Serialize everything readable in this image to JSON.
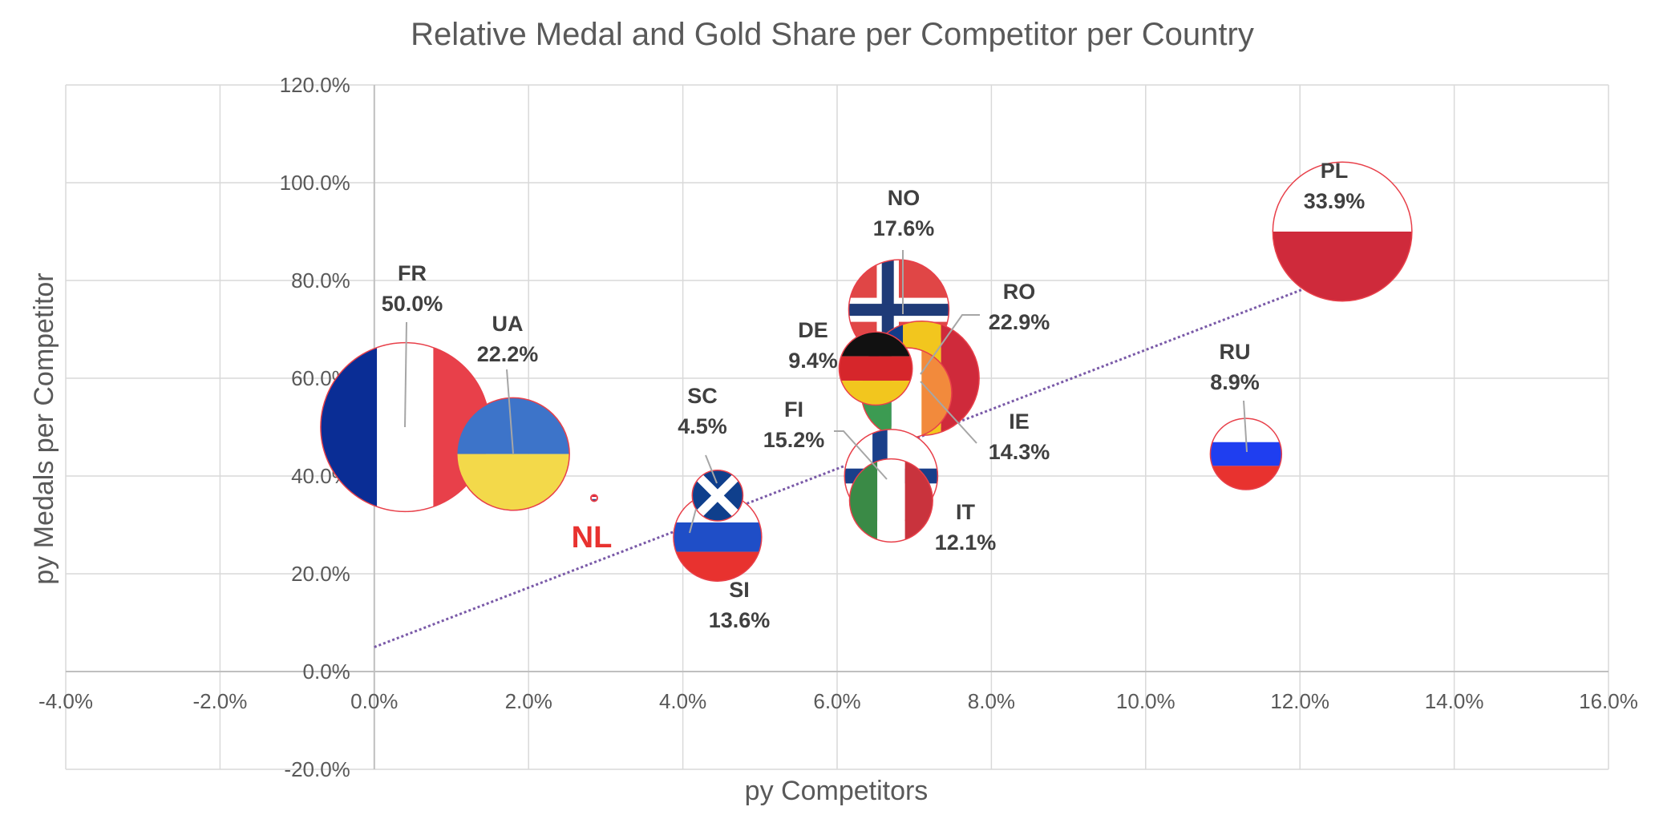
{
  "chart_data": {
    "type": "bubble",
    "title": "Relative Medal and Gold Share per Competitor per Country",
    "xlabel": "py Competitors",
    "ylabel": "py Medals per Competitor",
    "xlim": [
      -4.0,
      16.0
    ],
    "ylim": [
      -20.0,
      120.0
    ],
    "x_ticks": [
      "-4.0%",
      "-2.0%",
      "0.0%",
      "2.0%",
      "4.0%",
      "6.0%",
      "8.0%",
      "10.0%",
      "12.0%",
      "14.0%",
      "16.0%"
    ],
    "y_ticks": [
      "-20.0%",
      "0.0%",
      "20.0%",
      "40.0%",
      "60.0%",
      "80.0%",
      "100.0%",
      "120.0%"
    ],
    "grid": true,
    "trendline": {
      "style": "dotted",
      "color": "#7a5aa8",
      "from": [
        0.0,
        5.0
      ],
      "to": [
        12.5,
        81.0
      ]
    },
    "points": [
      {
        "code": "FR",
        "share": "50.0%",
        "x": 0.4,
        "y": 50.0,
        "size": 50.0,
        "flag": "fr"
      },
      {
        "code": "UA",
        "share": "22.2%",
        "x": 1.8,
        "y": 44.5,
        "size": 22.2,
        "flag": "ua"
      },
      {
        "code": "NL",
        "share": "",
        "x": 2.85,
        "y": 35.5,
        "size": 0.3,
        "flag": "nl"
      },
      {
        "code": "SC",
        "share": "4.5%",
        "x": 4.45,
        "y": 36.0,
        "size": 4.5,
        "flag": "sc"
      },
      {
        "code": "SI",
        "share": "13.6%",
        "x": 4.45,
        "y": 27.5,
        "size": 13.6,
        "flag": "si"
      },
      {
        "code": "NO",
        "share": "17.6%",
        "x": 6.8,
        "y": 74.0,
        "size": 17.6,
        "flag": "no"
      },
      {
        "code": "RO",
        "share": "22.9%",
        "x": 7.1,
        "y": 60.0,
        "size": 22.9,
        "flag": "ro"
      },
      {
        "code": "DE",
        "share": "9.4%",
        "x": 6.5,
        "y": 62.0,
        "size": 9.4,
        "flag": "de"
      },
      {
        "code": "IE",
        "share": "14.3%",
        "x": 6.9,
        "y": 57.0,
        "size": 14.3,
        "flag": "ie"
      },
      {
        "code": "FI",
        "share": "15.2%",
        "x": 6.7,
        "y": 40.0,
        "size": 15.2,
        "flag": "fi"
      },
      {
        "code": "IT",
        "share": "12.1%",
        "x": 6.7,
        "y": 35.0,
        "size": 12.1,
        "flag": "it"
      },
      {
        "code": "PL",
        "share": "33.9%",
        "x": 12.55,
        "y": 90.0,
        "size": 33.9,
        "flag": "pl"
      },
      {
        "code": "RU",
        "share": "8.9%",
        "x": 11.3,
        "y": 44.5,
        "size": 8.9,
        "flag": "ru"
      }
    ]
  }
}
